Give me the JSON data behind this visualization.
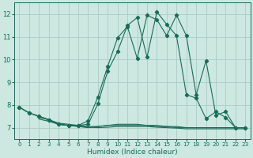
{
  "xlabel": "Humidex (Indice chaleur)",
  "xlim": [
    -0.5,
    23.5
  ],
  "ylim": [
    6.5,
    12.5
  ],
  "yticks": [
    7,
    8,
    9,
    10,
    11,
    12
  ],
  "xticks": [
    0,
    1,
    2,
    3,
    4,
    5,
    6,
    7,
    8,
    9,
    10,
    11,
    12,
    13,
    14,
    15,
    16,
    17,
    18,
    19,
    20,
    21,
    22,
    23
  ],
  "bg_color": "#cce8e0",
  "grid_color": "#aaccC4",
  "line_color": "#1a6b5a",
  "main_curve": {
    "x": [
      0,
      1,
      2,
      3,
      4,
      5,
      6,
      7,
      8,
      9,
      10,
      11,
      12,
      13,
      14,
      15,
      16,
      17,
      18,
      19,
      20,
      21,
      22,
      23
    ],
    "y": [
      7.9,
      7.65,
      7.5,
      7.35,
      7.15,
      7.1,
      7.1,
      7.15,
      8.05,
      9.5,
      10.35,
      11.5,
      11.85,
      10.1,
      12.1,
      11.55,
      11.05,
      8.45,
      8.3,
      7.4,
      7.7,
      7.45,
      7.0,
      7.0
    ]
  },
  "flat1": {
    "x": [
      0,
      1,
      2,
      3,
      4,
      5,
      6,
      7,
      8,
      9,
      10,
      11,
      12,
      13,
      14,
      15,
      16,
      17,
      18,
      19,
      20,
      21,
      22,
      23
    ],
    "y": [
      7.9,
      7.65,
      7.5,
      7.35,
      7.15,
      7.1,
      7.05,
      7.0,
      7.05,
      7.1,
      7.15,
      7.15,
      7.15,
      7.1,
      7.1,
      7.05,
      7.05,
      7.0,
      7.0,
      7.0,
      7.0,
      7.0,
      7.0,
      7.0
    ]
  },
  "flat2": {
    "x": [
      2,
      3,
      4,
      5,
      6,
      7,
      8,
      9,
      10,
      11,
      12,
      13,
      14,
      15,
      16,
      17,
      18,
      19,
      20,
      21,
      22,
      23
    ],
    "y": [
      7.45,
      7.35,
      7.2,
      7.15,
      7.1,
      7.05,
      7.05,
      7.1,
      7.1,
      7.1,
      7.1,
      7.1,
      7.05,
      7.05,
      7.0,
      7.0,
      7.0,
      7.0,
      7.0,
      7.0,
      7.0,
      7.0
    ]
  },
  "flat3": {
    "x": [
      2,
      3,
      4,
      5,
      6,
      7,
      8,
      9,
      10,
      11,
      12,
      13,
      14,
      15,
      16,
      17,
      18,
      19,
      20,
      21,
      22,
      23
    ],
    "y": [
      7.38,
      7.28,
      7.15,
      7.1,
      7.08,
      7.02,
      7.0,
      7.02,
      7.05,
      7.05,
      7.05,
      7.05,
      7.02,
      7.0,
      6.98,
      6.95,
      6.95,
      6.95,
      6.95,
      6.95,
      6.95,
      6.95
    ]
  },
  "second_curve": {
    "x": [
      0,
      1,
      2,
      3,
      4,
      5,
      6,
      7,
      8,
      9,
      10,
      11,
      12,
      13,
      14,
      15,
      16,
      17,
      18,
      19,
      20,
      21,
      22,
      23
    ],
    "y": [
      7.9,
      7.65,
      7.5,
      7.35,
      7.15,
      7.1,
      7.1,
      7.3,
      8.35,
      9.7,
      10.95,
      11.45,
      10.05,
      11.95,
      11.75,
      11.05,
      11.95,
      11.05,
      8.45,
      9.95,
      7.55,
      7.7,
      7.0,
      7.0
    ]
  }
}
